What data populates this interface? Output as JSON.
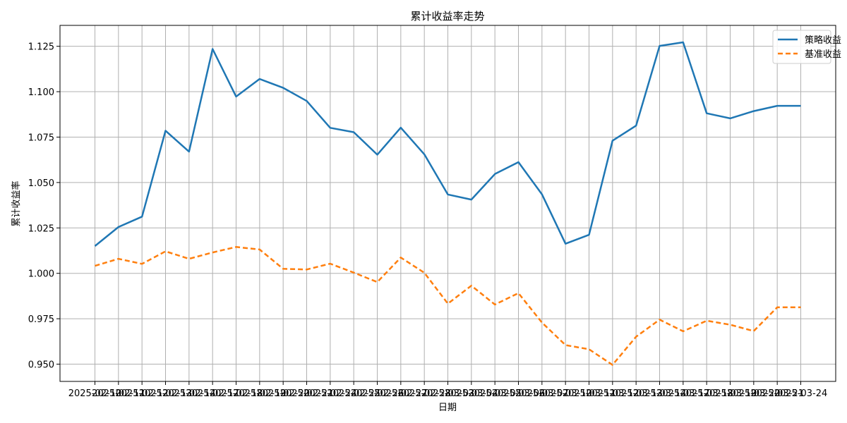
{
  "chart_data": {
    "type": "line",
    "title": "累计收益率走势",
    "xlabel": "日期",
    "ylabel": "累计收益率",
    "x": [
      "2025-02-10",
      "2025-02-11",
      "2025-02-12",
      "2025-02-13",
      "2025-02-14",
      "2025-02-17",
      "2025-02-18",
      "2025-02-19",
      "2025-02-20",
      "2025-02-21",
      "2025-02-24",
      "2025-02-25",
      "2025-02-26",
      "2025-02-27",
      "2025-02-28",
      "2025-03-03",
      "2025-03-04",
      "2025-03-05",
      "2025-03-06",
      "2025-03-07",
      "2025-03-10",
      "2025-03-11",
      "2025-03-12",
      "2025-03-13",
      "2025-03-14",
      "2025-03-17",
      "2025-03-18",
      "2025-03-19",
      "2025-03-20",
      "2025-03-21",
      "2025-03-24"
    ],
    "series": [
      {
        "name": "策略收益",
        "style": "solid",
        "color": "#1f77b4",
        "values": [
          1.015,
          1.0255,
          1.0312,
          1.0785,
          1.067,
          1.1235,
          1.0973,
          1.107,
          1.1021,
          1.0949,
          1.0801,
          1.0777,
          1.0653,
          1.0802,
          1.0655,
          1.0434,
          1.0406,
          1.0547,
          1.0612,
          1.0435,
          1.0163,
          1.0212,
          1.073,
          1.0813,
          1.1252,
          1.1272,
          1.0881,
          1.0853,
          1.0893,
          1.0922,
          1.0922
        ]
      },
      {
        "name": "基准收益",
        "style": "dashed",
        "color": "#ff7f0e",
        "values": [
          1.0041,
          1.008,
          1.0052,
          1.0121,
          1.008,
          1.0115,
          1.0145,
          1.0131,
          1.0025,
          1.0021,
          1.0053,
          1.0004,
          0.9952,
          1.0087,
          1.0003,
          0.9833,
          0.9932,
          0.9828,
          0.9891,
          0.9729,
          0.9605,
          0.9582,
          0.9496,
          0.9651,
          0.9745,
          0.9681,
          0.9739,
          0.9717,
          0.9682,
          0.9813,
          0.9813
        ]
      }
    ],
    "ylim": [
      0.9405,
      1.1365
    ],
    "yticks": [
      "0.950",
      "0.975",
      "1.000",
      "1.025",
      "1.050",
      "1.075",
      "1.100",
      "1.125"
    ],
    "grid": true,
    "legend": "top-right"
  }
}
